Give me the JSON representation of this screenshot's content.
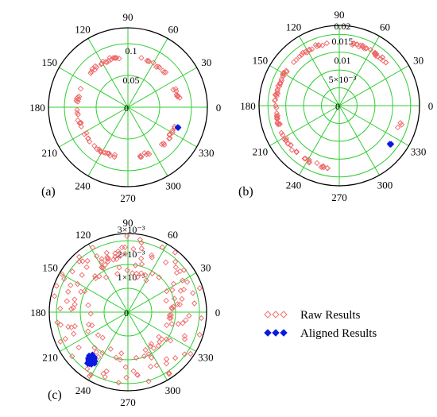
{
  "figure": {
    "legend": {
      "raw_label": "Raw Results",
      "aligned_label": "Aligned Results"
    }
  },
  "colors": {
    "grid": "#33cc33",
    "raw": "#ee6666",
    "aligned": "#0a1ae0",
    "axis": "#000000"
  },
  "chart_data": [
    {
      "type": "scatter",
      "coordinate_system": "polar",
      "panel_label": "(a)",
      "angular_ticks": [
        "0",
        "30",
        "60",
        "90",
        "120",
        "150",
        "180",
        "210",
        "240",
        "270",
        "300",
        "330"
      ],
      "radial_ticks": [
        "0",
        "0.05",
        "0.1"
      ],
      "rlim": [
        0,
        0.125
      ],
      "grid": true,
      "series": [
        {
          "name": "Raw Results",
          "marker": "diamond-open",
          "pattern": {
            "radius": 0.08,
            "radius_spread": 0.004,
            "angle_ranges_deg": [
              [
                5,
                25
              ],
              [
                42,
                78
              ],
              [
                100,
                138
              ],
              [
                155,
                175
              ],
              [
                183,
                203
              ],
              [
                210,
                262
              ],
              [
                282,
                302
              ],
              [
                312,
                340
              ]
            ],
            "count": 90,
            "seed": 11
          }
        },
        {
          "name": "Aligned Results",
          "marker": "diamond-filled",
          "pattern": {
            "center_r": 0.085,
            "center_theta_deg": 338,
            "spread": 0.002,
            "count": 4,
            "seed": 3
          }
        }
      ]
    },
    {
      "type": "scatter",
      "coordinate_system": "polar",
      "panel_label": "(b)",
      "angular_ticks": [
        "0",
        "30",
        "60",
        "90",
        "120",
        "150",
        "180",
        "210",
        "240",
        "270",
        "300",
        "330"
      ],
      "radial_ticks": [
        "0",
        "5×10⁻³",
        "0.01",
        "0.015",
        "0.02"
      ],
      "rlim": [
        0,
        0.0225
      ],
      "grid": true,
      "series": [
        {
          "name": "Raw Results",
          "marker": "diamond-open",
          "pattern": {
            "radius": 0.0178,
            "radius_spread": 0.0007,
            "angle_ranges_deg": [
              [
                40,
                80
              ],
              [
                100,
                138
              ],
              [
                145,
                200
              ],
              [
                205,
                250
              ],
              [
                252,
                262
              ],
              [
                335,
                345
              ]
            ],
            "count": 110,
            "seed": 23
          }
        },
        {
          "name": "Aligned Results",
          "marker": "diamond-filled",
          "pattern": {
            "center_r": 0.018,
            "center_theta_deg": 323,
            "spread": 0.0004,
            "count": 6,
            "seed": 5
          }
        }
      ]
    },
    {
      "type": "scatter",
      "coordinate_system": "polar",
      "panel_label": "(c)",
      "angular_ticks": [
        "0",
        "30",
        "60",
        "90",
        "120",
        "150",
        "180",
        "210",
        "240",
        "270",
        "300",
        "330"
      ],
      "radial_ticks": [
        "0",
        "1×10⁻³",
        "2×10⁻³",
        "3×10⁻³"
      ],
      "rlim": [
        0,
        0.0033
      ],
      "grid": true,
      "series": [
        {
          "name": "Raw Results",
          "marker": "diamond-open",
          "pattern": {
            "radius_min": 0.0015,
            "radius_max": 0.0032,
            "angle_ranges_deg": [
              [
                0,
                360
              ]
            ],
            "count": 170,
            "seed": 41
          }
        },
        {
          "name": "Aligned Results",
          "marker": "diamond-filled",
          "pattern": {
            "center_r": 0.0025,
            "center_theta_deg": 233,
            "spread": 0.00022,
            "count": 110,
            "seed": 7
          }
        }
      ]
    }
  ]
}
